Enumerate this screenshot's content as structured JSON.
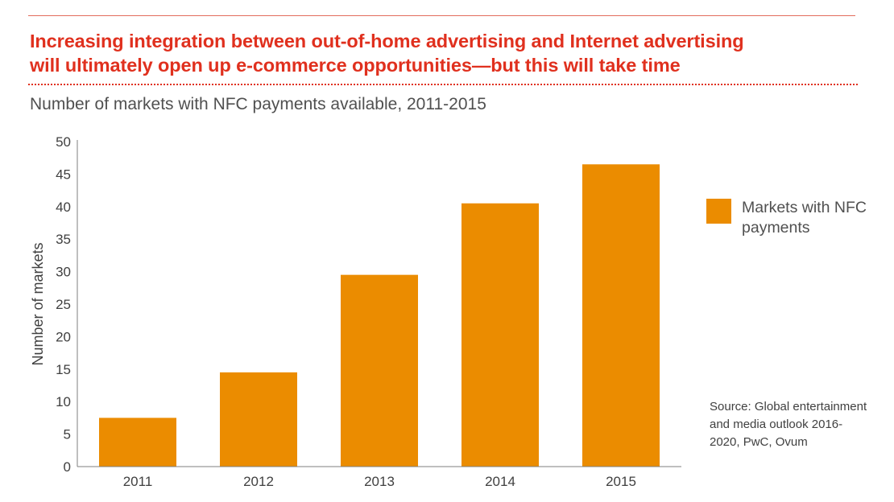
{
  "headline": {
    "line1": "Increasing integration between out-of-home advertising and Internet advertising",
    "line2": "will ultimately open up e-commerce opportunities—but this will take time"
  },
  "subtitle": "Number of markets with NFC payments available, 2011-2015",
  "legend": {
    "label": "Markets with NFC payments"
  },
  "source": "Source: Global entertainment and media outlook 2016-2020, PwC, Ovum",
  "colors": {
    "headline": "#e0301e",
    "bar": "#eb8c00",
    "axis": "#7f7f7f",
    "text": "#404040"
  },
  "chart_data": {
    "type": "bar",
    "title": "Number of markets with NFC payments available, 2011-2015",
    "xlabel": "",
    "ylabel": "Number of markets",
    "categories": [
      "2011",
      "2012",
      "2013",
      "2014",
      "2015"
    ],
    "series": [
      {
        "name": "Markets with NFC payments",
        "values": [
          7.5,
          14.5,
          29.5,
          40.5,
          46.5
        ]
      }
    ],
    "ylim": [
      0,
      50
    ],
    "yticks": [
      0,
      5,
      10,
      15,
      20,
      25,
      30,
      35,
      40,
      45,
      50
    ],
    "grid": false,
    "legend_position": "right"
  }
}
